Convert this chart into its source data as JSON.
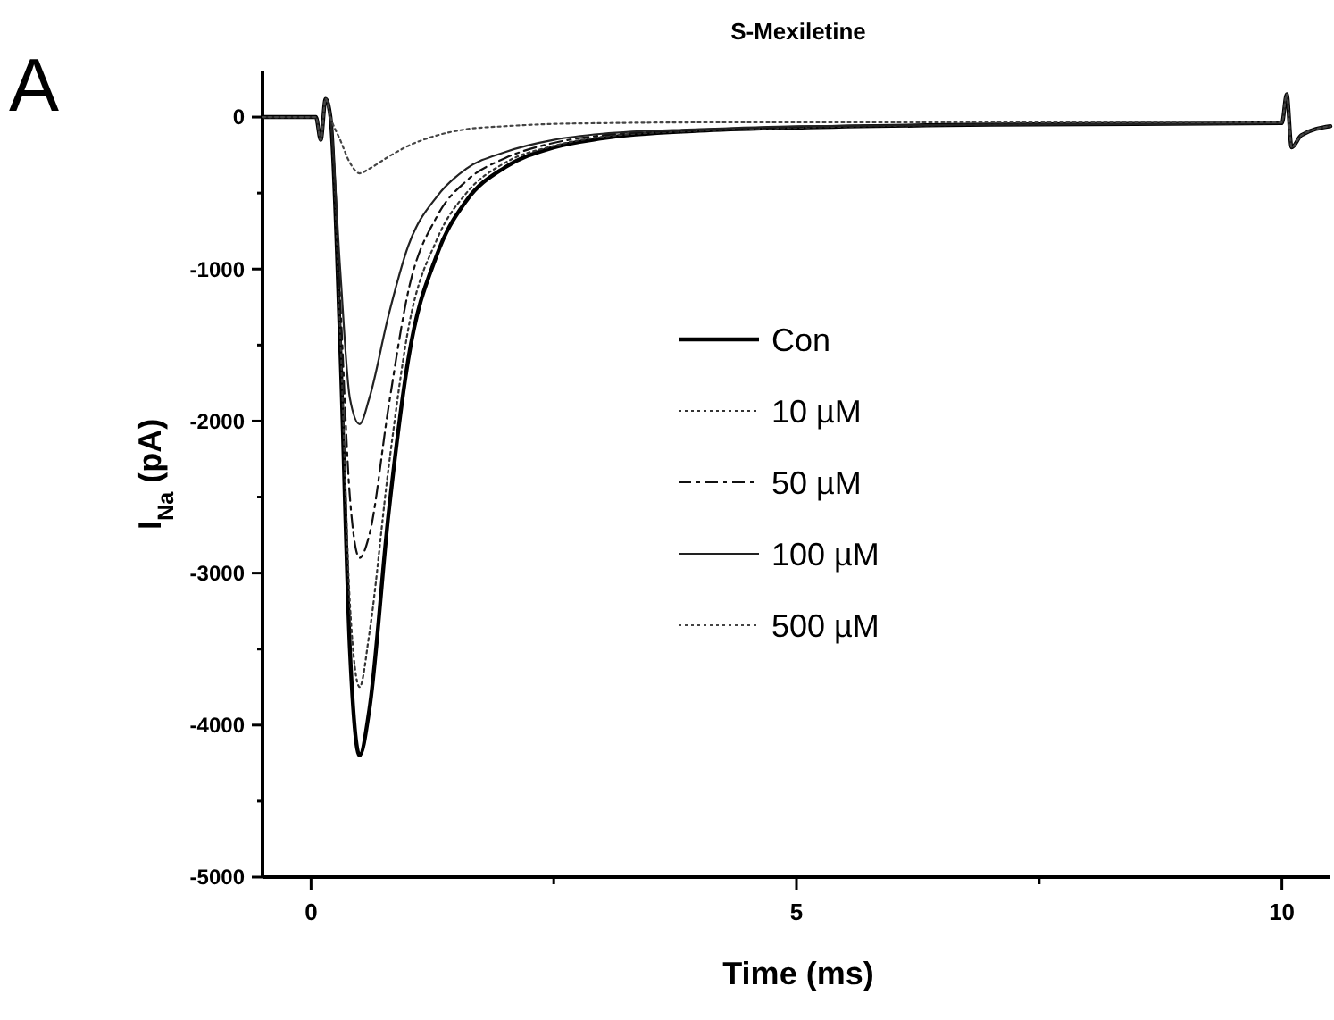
{
  "chart_data": {
    "type": "line",
    "title": "S-Mexiletine",
    "xlabel": "Time (ms)",
    "ylabel": "I$_{Na}$ (pA)",
    "annotations": [
      "A"
    ],
    "xlim": [
      -0.5,
      10.5
    ],
    "xticks": [
      0,
      {
        "value": 2.5,
        "label": null
      },
      5,
      {
        "value": 7.5,
        "label": null
      },
      10
    ],
    "ylim": [
      -5000,
      300
    ],
    "yticks": [
      -5000,
      {
        "value": -4500,
        "label": null
      },
      -4000,
      {
        "value": -3500,
        "label": null
      },
      -3000,
      {
        "value": -2500,
        "label": null
      },
      -2000,
      {
        "value": -1500,
        "label": null
      },
      -1000,
      {
        "value": -500,
        "label": null
      },
      0
    ],
    "x": [
      -0.5,
      0.05,
      0.1,
      0.15,
      0.2,
      0.3,
      0.4,
      0.5,
      0.6,
      0.8,
      1.0,
      1.3,
      1.6,
      2.0,
      2.5,
      3.0,
      4.0,
      5.0,
      7.0,
      10.0,
      10.05,
      10.1,
      10.2,
      10.5
    ],
    "legend": "right",
    "grid": false,
    "series": [
      {
        "name": "Con",
        "color": "#000000",
        "line_style": "solid",
        "values": [
          0,
          0,
          -150,
          120,
          0,
          -1500,
          -3500,
          -4200,
          -3900,
          -2600,
          -1600,
          -900,
          -550,
          -330,
          -200,
          -140,
          -90,
          -70,
          -50,
          -40,
          150,
          -200,
          -120,
          -60
        ]
      },
      {
        "name": "10 µM",
        "color": "#333333",
        "line_style": "dotted",
        "values": [
          0,
          0,
          -150,
          120,
          0,
          -1400,
          -3200,
          -3750,
          -3400,
          -2300,
          -1400,
          -800,
          -500,
          -300,
          -190,
          -130,
          -90,
          -70,
          -50,
          -40,
          150,
          -200,
          -120,
          -60
        ]
      },
      {
        "name": "50 µM",
        "color": "#111111",
        "line_style": "dashed",
        "values": [
          0,
          0,
          -150,
          120,
          0,
          -1200,
          -2500,
          -2900,
          -2750,
          -1900,
          -1150,
          -650,
          -420,
          -270,
          -170,
          -120,
          -85,
          -65,
          -50,
          -40,
          150,
          -200,
          -120,
          -60
        ]
      },
      {
        "name": "100 µM",
        "color": "#222222",
        "line_style": "solid",
        "values": [
          0,
          0,
          -150,
          120,
          0,
          -1000,
          -1850,
          -2020,
          -1850,
          -1300,
          -850,
          -520,
          -340,
          -230,
          -150,
          -110,
          -80,
          -60,
          -50,
          -40,
          150,
          -200,
          -120,
          -60
        ]
      },
      {
        "name": "500 µM",
        "color": "#444444",
        "line_style": "dotted",
        "values": [
          0,
          0,
          -150,
          120,
          0,
          -150,
          -300,
          -370,
          -340,
          -260,
          -190,
          -120,
          -80,
          -60,
          -45,
          -40,
          -35,
          -35,
          -35,
          -35,
          150,
          -200,
          -120,
          -60
        ]
      }
    ]
  }
}
